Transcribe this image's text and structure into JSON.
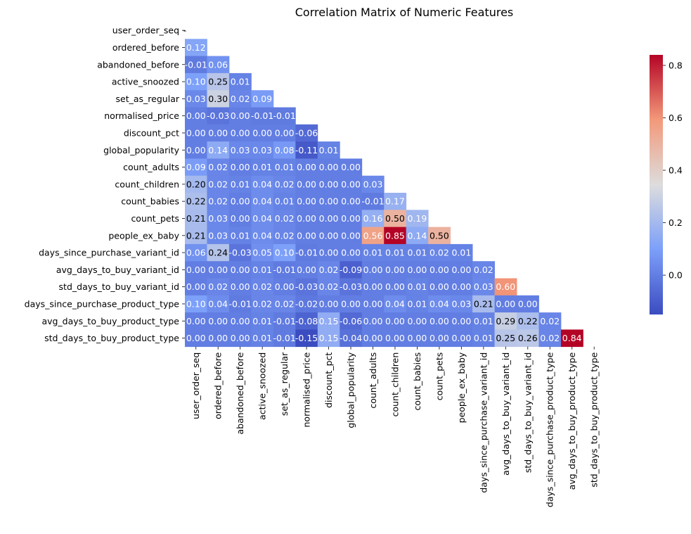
{
  "chart_data": {
    "type": "heatmap",
    "title": "Correlation Matrix of Numeric Features",
    "variables": [
      "user_order_seq",
      "ordered_before",
      "abandoned_before",
      "active_snoozed",
      "set_as_regular",
      "normalised_price",
      "discount_pct",
      "global_popularity",
      "count_adults",
      "count_children",
      "count_babies",
      "count_pets",
      "people_ex_baby",
      "days_since_purchase_variant_id",
      "avg_days_to_buy_variant_id",
      "std_days_to_buy_variant_id",
      "days_since_purchase_product_type",
      "avg_days_to_buy_product_type",
      "std_days_to_buy_product_type"
    ],
    "mask": "upper-triangle-including-diagonal",
    "diagonal_tick_label": "-",
    "values": [
      [],
      [
        0.12
      ],
      [
        -0.01,
        0.06
      ],
      [
        0.1,
        0.25,
        0.01
      ],
      [
        0.03,
        0.3,
        0.02,
        0.09
      ],
      [
        0.0,
        -0.03,
        -0.0,
        -0.01,
        -0.01
      ],
      [
        0.0,
        0.0,
        0.0,
        0.0,
        -0.0,
        -0.06
      ],
      [
        -0.0,
        0.14,
        0.03,
        0.03,
        0.08,
        -0.11,
        0.01
      ],
      [
        0.09,
        0.02,
        0.0,
        0.01,
        0.01,
        -0.0,
        0.0,
        0.0
      ],
      [
        0.2,
        0.02,
        0.01,
        0.04,
        0.02,
        0.0,
        0.0,
        0.0,
        0.03
      ],
      [
        0.22,
        0.02,
        0.0,
        0.04,
        0.01,
        -0.0,
        0.0,
        0.0,
        -0.01,
        0.17
      ],
      [
        0.21,
        0.03,
        0.0,
        0.04,
        0.02,
        0.0,
        0.0,
        0.0,
        0.16,
        0.5,
        0.19
      ],
      [
        0.21,
        0.03,
        0.01,
        0.04,
        0.02,
        0.0,
        0.0,
        0.0,
        0.56,
        0.85,
        0.14,
        0.5
      ],
      [
        0.06,
        0.24,
        -0.03,
        0.05,
        0.1,
        -0.01,
        -0.0,
        -0.0,
        0.01,
        0.01,
        0.01,
        0.02,
        0.01
      ],
      [
        -0.0,
        -0.0,
        -0.0,
        0.01,
        -0.01,
        -0.0,
        0.02,
        -0.09,
        0.0,
        0.0,
        0.0,
        0.0,
        0.0,
        0.02
      ],
      [
        -0.0,
        0.02,
        0.0,
        0.02,
        -0.0,
        -0.03,
        0.02,
        -0.03,
        0.0,
        0.0,
        0.01,
        0.0,
        0.0,
        0.03,
        0.6
      ],
      [
        0.1,
        0.04,
        -0.01,
        0.02,
        0.02,
        -0.02,
        -0.0,
        0.0,
        0.0,
        0.04,
        0.01,
        0.04,
        0.03,
        0.21,
        0.0,
        0.0
      ],
      [
        0.0,
        -0.0,
        -0.0,
        0.01,
        -0.01,
        -0.08,
        0.15,
        -0.06,
        0.0,
        -0.0,
        0.0,
        -0.0,
        -0.0,
        0.01,
        0.29,
        0.22,
        0.02
      ],
      [
        0.0,
        0.0,
        -0.0,
        0.01,
        -0.01,
        -0.15,
        0.15,
        -0.04,
        0.0,
        -0.0,
        0.0,
        -0.0,
        -0.0,
        0.01,
        0.25,
        0.26,
        0.02,
        0.84
      ]
    ],
    "colormap": "coolwarm",
    "colorbar": {
      "range": [
        -0.15,
        0.84
      ],
      "ticks": [
        0.0,
        0.2,
        0.4,
        0.6,
        0.8
      ],
      "tick_labels": [
        "0.0",
        "0.2",
        "0.4",
        "0.6",
        "0.8"
      ],
      "placement": "right"
    },
    "annotation_format": "0.00"
  }
}
